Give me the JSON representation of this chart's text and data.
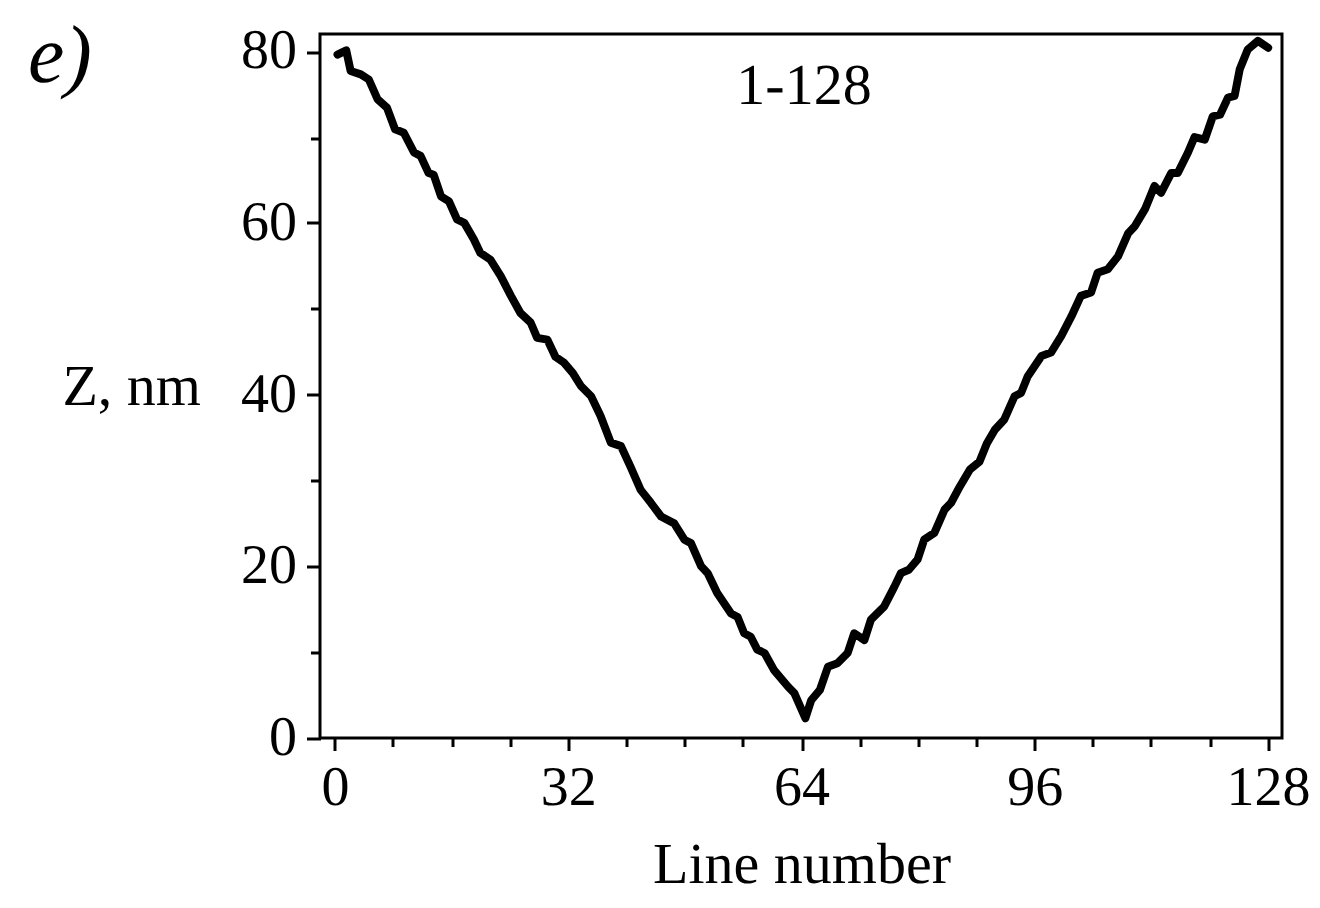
{
  "chart_data": {
    "type": "line",
    "xlabel": "Line number",
    "ylabel": "Z, nm",
    "annotations": [
      "e)",
      "1-128"
    ],
    "x": [
      0.4,
      1.6,
      2.2,
      3.6,
      4.7,
      5.9,
      7.2,
      8.3,
      9.5,
      10.9,
      11.8,
      12.9,
      13.6,
      14.6,
      15.7,
      16.8,
      17.8,
      19.1,
      20.0,
      21.4,
      22.8,
      24.2,
      25.5,
      26.9,
      27.8,
      29.2,
      30.3,
      31.5,
      32.7,
      33.8,
      35.2,
      36.5,
      37.9,
      39.3,
      40.6,
      42.0,
      43.4,
      44.8,
      46.6,
      48.0,
      48.9,
      50.3,
      51.2,
      52.5,
      54.4,
      55.3,
      56.2,
      57.1,
      58.0,
      59.0,
      60.3,
      62.2,
      63.1,
      64.6,
      65.4,
      66.6,
      67.7,
      69.0,
      70.4,
      71.3,
      72.7,
      73.6,
      75.4,
      76.8,
      77.7,
      78.8,
      80.0,
      80.9,
      82.3,
      83.7,
      84.6,
      85.8,
      87.2,
      88.5,
      89.5,
      90.6,
      91.9,
      93.3,
      94.2,
      95.1,
      97.0,
      98.3,
      99.7,
      101.1,
      102.4,
      103.8,
      104.7,
      106.1,
      107.5,
      108.9,
      109.8,
      111.2,
      112.5,
      113.4,
      114.8,
      115.7,
      117.1,
      118.0,
      119.4,
      120.5,
      121.5,
      122.6,
      123.5,
      124.2,
      125.3,
      126.7,
      128.1
    ],
    "series": [
      {
        "color": "#000000",
        "values": [
          79.6,
          80.1,
          77.7,
          77.3,
          76.7,
          74.4,
          73.4,
          70.9,
          70.5,
          68.2,
          67.8,
          65.8,
          65.6,
          63.1,
          62.5,
          60.4,
          60.0,
          58.1,
          56.5,
          55.7,
          53.8,
          51.5,
          49.5,
          48.4,
          46.6,
          46.4,
          44.4,
          43.7,
          42.5,
          41.0,
          39.8,
          37.5,
          34.4,
          34.0,
          31.6,
          28.9,
          27.4,
          25.8,
          25.0,
          23.1,
          22.7,
          20.0,
          19.2,
          16.9,
          14.5,
          14.1,
          12.2,
          11.8,
          10.3,
          9.9,
          7.9,
          6.0,
          5.2,
          2.3,
          4.4,
          5.6,
          8.3,
          8.7,
          9.9,
          12.2,
          11.4,
          13.8,
          15.3,
          17.6,
          19.2,
          19.6,
          20.8,
          23.1,
          23.9,
          26.6,
          27.4,
          29.3,
          31.3,
          32.2,
          34.3,
          35.9,
          37.1,
          39.8,
          40.2,
          42.1,
          44.5,
          44.9,
          46.8,
          49.1,
          51.5,
          51.9,
          54.2,
          54.6,
          56.1,
          58.8,
          59.6,
          61.6,
          64.3,
          63.5,
          65.8,
          65.8,
          68.2,
          70.0,
          69.7,
          72.4,
          72.6,
          74.6,
          74.8,
          77.9,
          80.2,
          81.2,
          80.4
        ]
      }
    ],
    "xlim": [
      -2,
      130
    ],
    "xticks": [
      0,
      {
        "value": 8,
        "label": null
      },
      {
        "value": 16,
        "label": null
      },
      {
        "value": 24,
        "label": null
      },
      32,
      {
        "value": 40,
        "label": null
      },
      {
        "value": 48,
        "label": null
      },
      {
        "value": 56,
        "label": null
      },
      64,
      {
        "value": 72,
        "label": null
      },
      {
        "value": 80,
        "label": null
      },
      {
        "value": 88,
        "label": null
      },
      96,
      {
        "value": 104,
        "label": null
      },
      {
        "value": 112,
        "label": null
      },
      {
        "value": 120,
        "label": null
      },
      128
    ],
    "ylim": [
      0,
      82
    ],
    "yticks": [
      0,
      {
        "value": 10,
        "label": null
      },
      20,
      {
        "value": 30,
        "label": null
      },
      40,
      {
        "value": 50,
        "label": null
      },
      60,
      {
        "value": 70,
        "label": null
      },
      80
    ],
    "line_style": "solid"
  }
}
